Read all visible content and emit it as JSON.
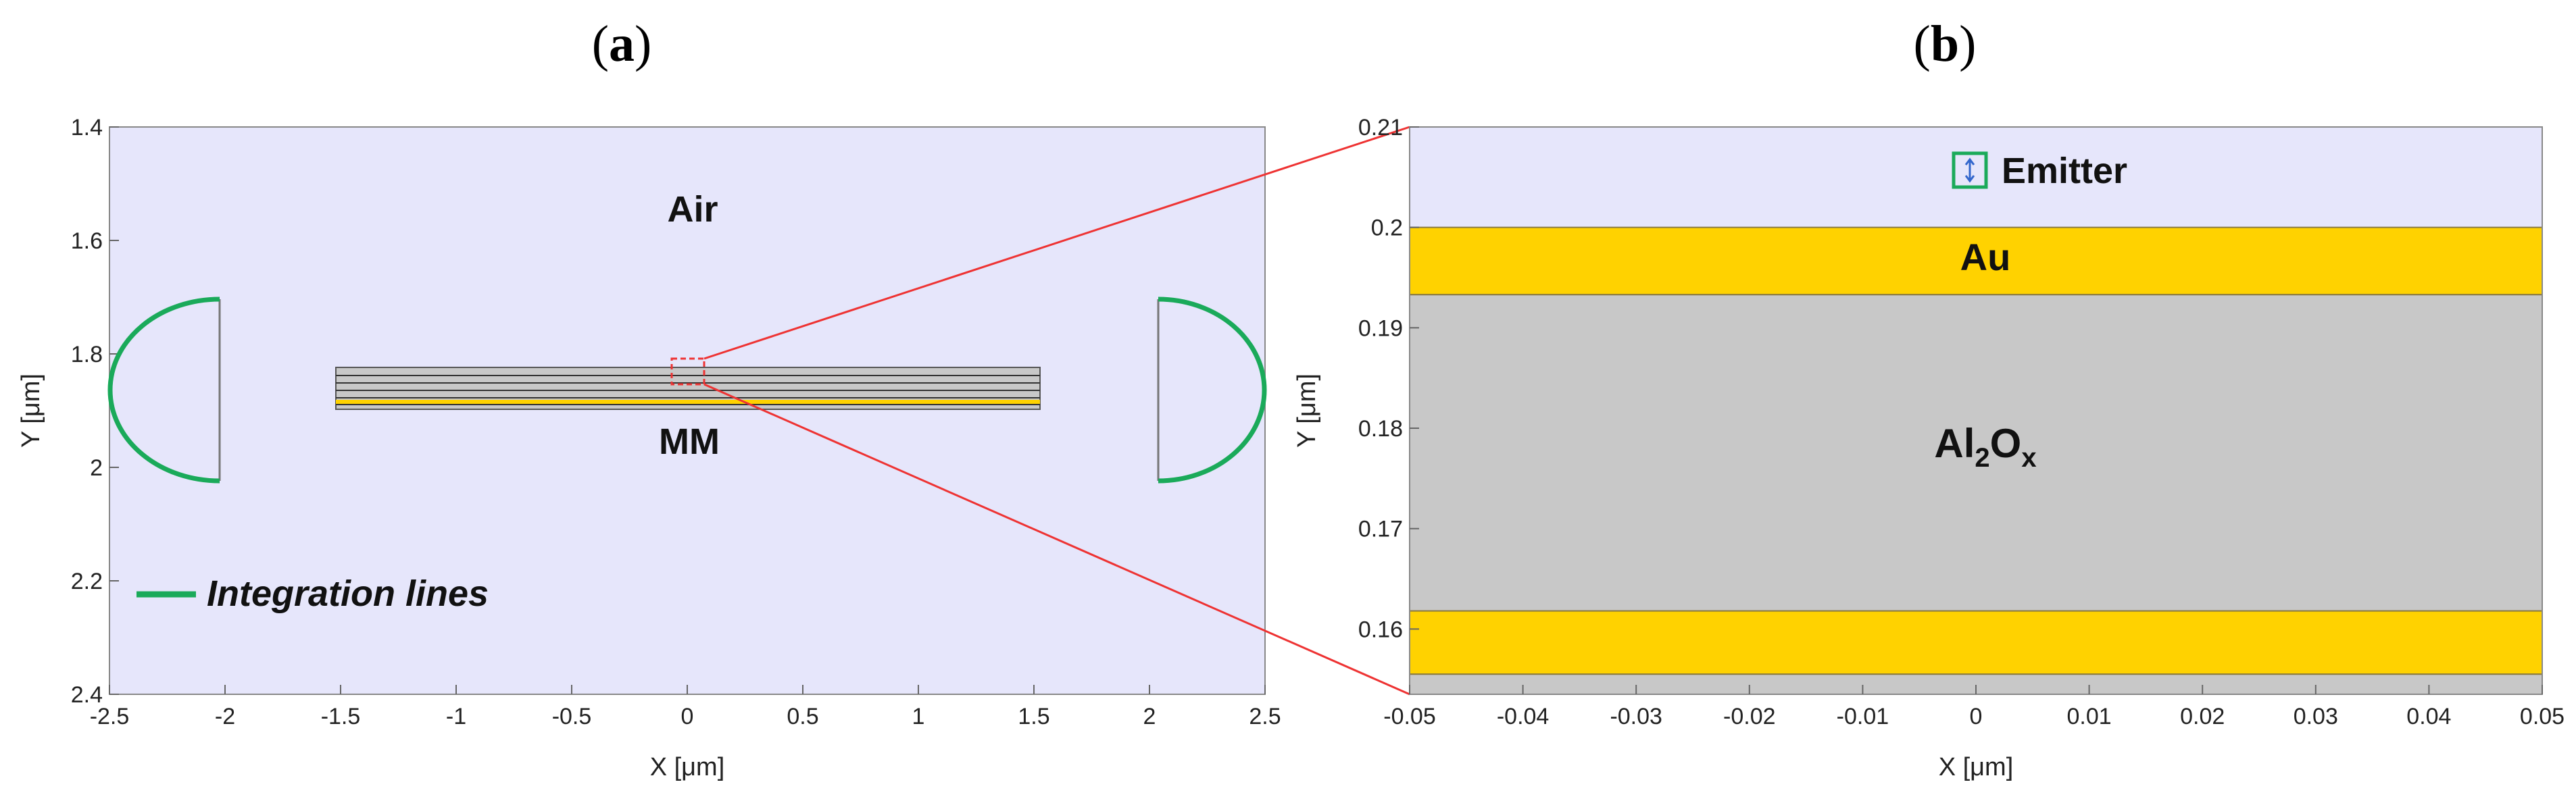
{
  "panel_a": {
    "label": "a",
    "xlabel": "X [μm]",
    "ylabel": "Y [μm]",
    "x_ticks": [
      "-2.5",
      "-2",
      "-1.5",
      "-1",
      "-0.5",
      "0",
      "0.5",
      "1",
      "1.5",
      "2",
      "2.5"
    ],
    "y_ticks": [
      "1.4",
      "1.6",
      "1.8",
      "2",
      "2.2",
      "2.4"
    ],
    "xlim": [
      -2.5,
      2.5
    ],
    "ylim": [
      1.4,
      2.4
    ],
    "y_reversed": true,
    "region_air": "Air",
    "region_mm": "MM",
    "legend_label": "Integration lines",
    "background_color": "#e6e6fb",
    "integration_line_color": "#1aaa5a",
    "mm_extent_x": [
      -1.52,
      1.52
    ],
    "mm_extent_y": [
      1.825,
      1.895
    ],
    "zoom_box_x": [
      -0.05,
      0.05
    ],
    "zoom_box_y": [
      1.82,
      1.86
    ]
  },
  "panel_b": {
    "label": "b",
    "xlabel": "X [μm]",
    "ylabel": "Y [μm]",
    "x_ticks": [
      "-0.05",
      "-0.04",
      "-0.03",
      "-0.02",
      "-0.01",
      "0",
      "0.01",
      "0.02",
      "0.03",
      "0.04",
      "0.05"
    ],
    "y_ticks": [
      "0.16",
      "0.17",
      "0.18",
      "0.19",
      "0.2",
      "0.21"
    ],
    "xlim": [
      -0.05,
      0.05
    ],
    "ylim": [
      0.1535,
      0.21
    ],
    "layers": [
      {
        "name": "Au",
        "y_bottom": 0.1933,
        "y_top": 0.2,
        "color": "#ffd200"
      },
      {
        "name": "Al2Ox",
        "y_bottom": 0.1618,
        "y_top": 0.1933,
        "color": "#c8c8c8"
      },
      {
        "name": "",
        "y_bottom": 0.1555,
        "y_top": 0.1618,
        "color": "#ffd200"
      },
      {
        "name": "",
        "y_bottom": 0.1535,
        "y_top": 0.1555,
        "color": "#c8c8c8"
      }
    ],
    "label_au": "Au",
    "label_al": "Al",
    "label_al_sub": "2",
    "label_o": "O",
    "label_o_sub": "x",
    "emitter_label": "Emitter",
    "emitter_x": 0.001,
    "emitter_y": 0.2059,
    "background_color": "#e6e6fb"
  },
  "colors": {
    "zoom_lines": "#ee3333",
    "emitter_box": "#1aaa5a",
    "emitter_arrow": "#3366cc"
  }
}
